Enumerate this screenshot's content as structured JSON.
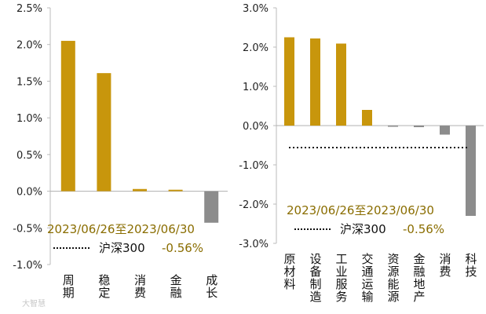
{
  "chart_data": [
    {
      "type": "bar",
      "categories": [
        "周期",
        "稳定",
        "消费",
        "金融",
        "成长"
      ],
      "values": [
        2.05,
        1.61,
        0.03,
        0.02,
        -0.43
      ],
      "ylim": [
        -1.0,
        2.5
      ],
      "yticks": [
        "2.5%",
        "2.0%",
        "1.5%",
        "1.0%",
        "0.5%",
        "0.0%",
        "-0.5%",
        "-1.0%"
      ],
      "grid": false,
      "annotation": {
        "date_range": "2023/06/26至2023/06/30",
        "benchmark_label": "沪深300",
        "benchmark_value": "-0.56%",
        "benchmark_numeric": -0.56
      }
    },
    {
      "type": "bar",
      "categories": [
        "原材料",
        "设备制造",
        "工业服务",
        "交通运输",
        "资源能源",
        "金融地产",
        "消费",
        "科技"
      ],
      "values": [
        2.25,
        2.22,
        2.09,
        0.4,
        -0.01,
        -0.04,
        -0.23,
        -2.3
      ],
      "ylim": [
        -3.0,
        3.0
      ],
      "yticks": [
        "3.0%",
        "2.0%",
        "1.0%",
        "0.0%",
        "-1.0%",
        "-2.0%",
        "-3.0%"
      ],
      "grid": false,
      "annotation": {
        "date_range": "2023/06/26至2023/06/30",
        "benchmark_label": "沪深300",
        "benchmark_value": "-0.56%",
        "benchmark_numeric": -0.56
      }
    }
  ],
  "colors": {
    "positive": "#c8960c",
    "negative": "#8c8c8c",
    "date_text": "#8a6d00",
    "value_text": "#8a6d00",
    "benchmark_line": "#111111"
  },
  "watermark": "大智慧"
}
